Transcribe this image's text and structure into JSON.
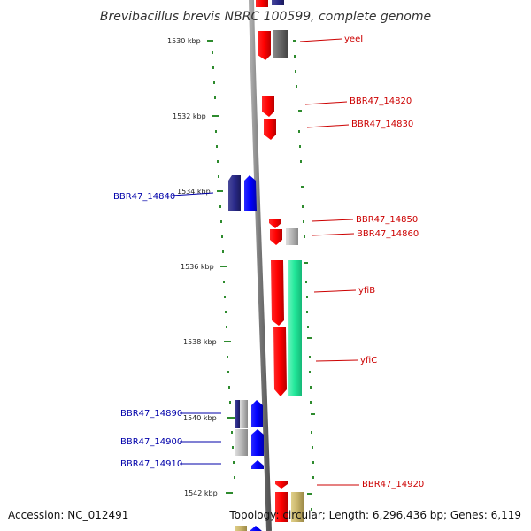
{
  "title": "Brevibacillus brevis NBRC 100599, complete genome",
  "footer": {
    "accession": "Accession: NC_012491",
    "summary": "Topology: circular; Length: 6,296,436 bp; Genes: 6,119"
  },
  "colors": {
    "forward_gene": "#ff0000",
    "reverse_gene": "#0000ff",
    "reverse_gene_dark": "#2a2a8a",
    "pseudo_gene": "#b5b5b5",
    "rrna": "#22e89a",
    "misc": "#c8b46a",
    "backbone": "#888888",
    "tick_dots": "#2e8b2e"
  },
  "ticks": [
    "1530 kbp",
    "1532 kbp",
    "1534 kbp",
    "1536 kbp",
    "1538 kbp",
    "1540 kbp",
    "1542 kbp"
  ],
  "gene_labels": {
    "forward": [
      "yeeI",
      "BBR47_14820",
      "BBR47_14830",
      "BBR47_14850",
      "BBR47_14860",
      "yfiB",
      "yfiC",
      "BBR47_14920"
    ],
    "reverse": [
      "BBR47_14840",
      "BBR47_14890",
      "BBR47_14900",
      "BBR47_14910"
    ]
  }
}
